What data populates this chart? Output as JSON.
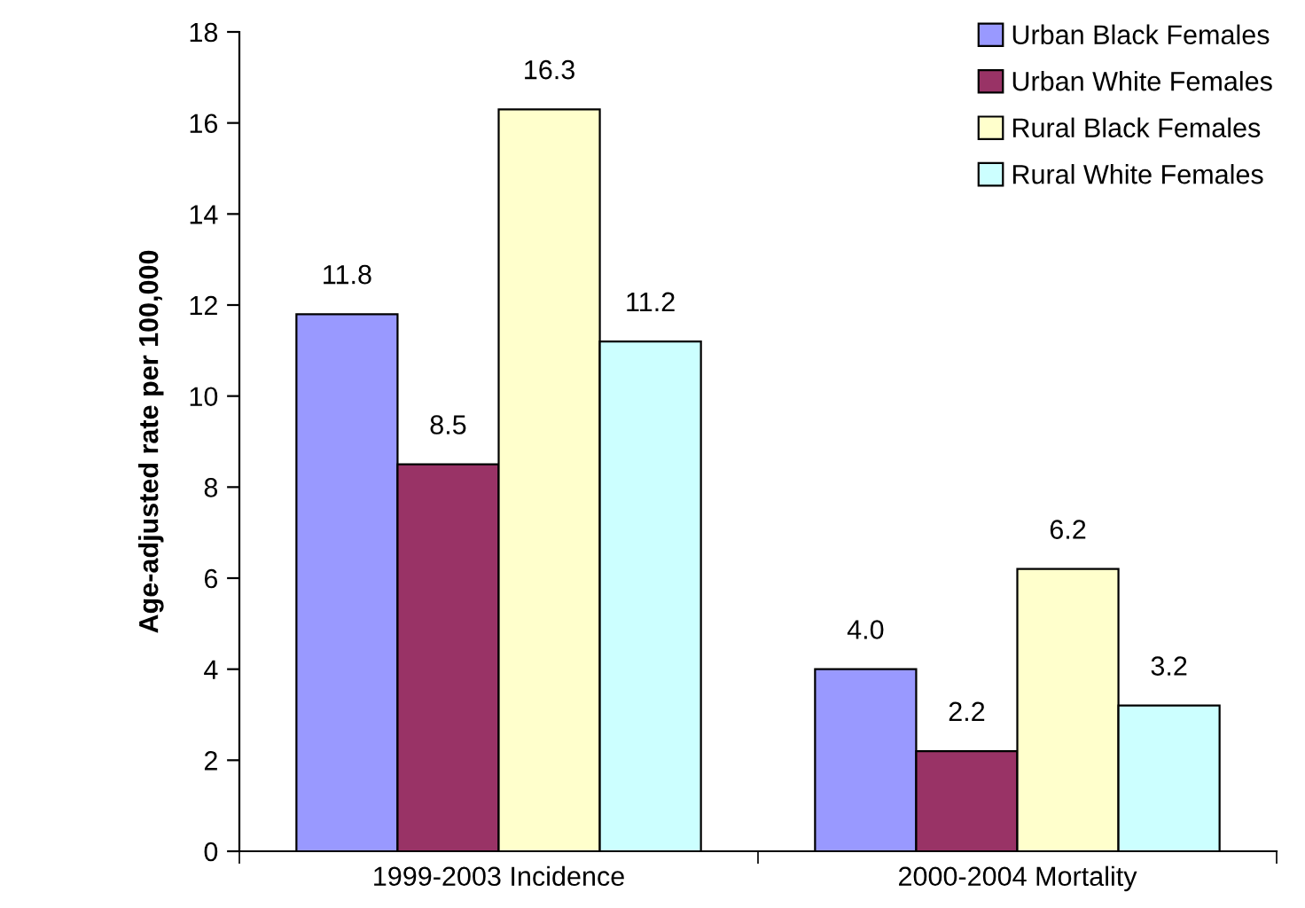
{
  "chart_data": {
    "type": "bar",
    "ylabel": "Age-adjusted rate per 100,000",
    "categories": [
      "1999-2003 Incidence",
      "2000-2004 Mortality"
    ],
    "series": [
      {
        "name": "Urban Black Females",
        "color": "#9999ff",
        "values": [
          11.8,
          4.0
        ],
        "value_labels": [
          "11.8",
          "4.0"
        ]
      },
      {
        "name": "Urban White Females",
        "color": "#993366",
        "values": [
          8.5,
          2.2
        ],
        "value_labels": [
          "8.5",
          "2.2"
        ]
      },
      {
        "name": "Rural Black Females",
        "color": "#ffffcc",
        "values": [
          16.3,
          6.2
        ],
        "value_labels": [
          "16.3",
          "6.2"
        ]
      },
      {
        "name": "Rural White Females",
        "color": "#ccffff",
        "values": [
          11.2,
          3.2
        ],
        "value_labels": [
          "11.2",
          "3.2"
        ]
      }
    ],
    "ylim": [
      0,
      18
    ],
    "yticks": [
      0,
      2,
      4,
      6,
      8,
      10,
      12,
      14,
      16,
      18
    ],
    "grid": false,
    "legend": "top right"
  }
}
